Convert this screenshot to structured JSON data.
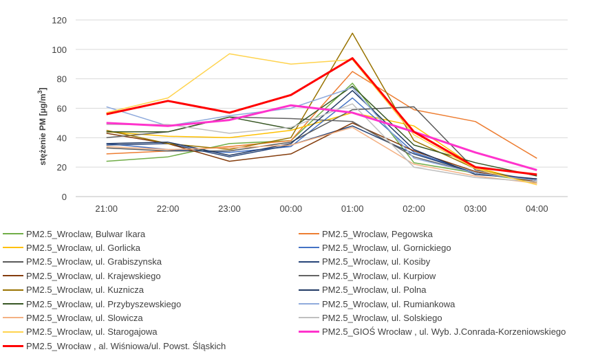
{
  "chart_data": {
    "type": "line",
    "ylabel": "stężenie PM [µg/m³]",
    "ylabel_parts": [
      "stężenie PM [µg/m",
      "3",
      "]"
    ],
    "ylim": [
      0,
      120
    ],
    "yticks": [
      0,
      20,
      40,
      60,
      80,
      100,
      120
    ],
    "categories": [
      "21:00",
      "22:00",
      "23:00",
      "00:00",
      "01:00",
      "02:00",
      "03:00",
      "04:00"
    ],
    "grid": "horizontal",
    "legend_position": "bottom",
    "series": [
      {
        "name": "PM2.5_Wroclaw, Bulwar Ikara",
        "color": "#70ad47",
        "width": 1.5,
        "values": [
          24,
          27,
          36,
          38,
          77,
          23,
          16,
          10
        ]
      },
      {
        "name": "PM2.5_Wroclaw, Pegowska",
        "color": "#ed7d31",
        "width": 1.5,
        "values": [
          29,
          31,
          34,
          38,
          85,
          59,
          51,
          26
        ]
      },
      {
        "name": "PM2.5_Wroclaw, ul. Gorlicka",
        "color": "#ffc000",
        "width": 1.5,
        "values": [
          44,
          41,
          40,
          45,
          57,
          48,
          20,
          9
        ]
      },
      {
        "name": "PM2.5_Wroclaw, ul. Gornickiego",
        "color": "#4472c4",
        "width": 1.5,
        "values": [
          36,
          32,
          30,
          34,
          67,
          30,
          16,
          11
        ]
      },
      {
        "name": "PM2.5_Wroclaw, ul. Grabiszynska",
        "color": "#595959",
        "width": 1.5,
        "values": [
          33,
          31,
          31,
          37,
          59,
          61,
          18,
          11
        ]
      },
      {
        "name": "PM2.5_Wroclaw, ul. Kosiby",
        "color": "#264478",
        "width": 1.5,
        "values": [
          35,
          36,
          27,
          35,
          48,
          29,
          16,
          12
        ]
      },
      {
        "name": "PM2.5_Wroclaw, ul. Krajewskiego",
        "color": "#843c0c",
        "width": 1.5,
        "values": [
          43,
          36,
          24,
          29,
          50,
          31,
          17,
          10
        ]
      },
      {
        "name": "PM2.5_Wroclaw, ul. Kurpiow",
        "color": "#636363",
        "width": 1.5,
        "values": [
          40,
          44,
          54,
          53,
          51,
          27,
          16,
          11
        ]
      },
      {
        "name": "PM2.5_Wroclaw, ul. Kuznicza",
        "color": "#997300",
        "width": 1.5,
        "values": [
          45,
          36,
          32,
          40,
          111,
          38,
          19,
          9
        ]
      },
      {
        "name": "PM2.5_Wroclaw, ul. Polna",
        "color": "#203864",
        "width": 1.5,
        "values": [
          36,
          37,
          28,
          36,
          72,
          32,
          15,
          12
        ]
      },
      {
        "name": "PM2.5_Wroclaw, ul. Przybyszewskiego",
        "color": "#375623",
        "width": 1.5,
        "values": [
          44,
          44,
          54,
          46,
          75,
          35,
          23,
          14
        ]
      },
      {
        "name": "PM2.5_Wroclaw, ul. Rumiankowa",
        "color": "#8faadc",
        "width": 1.5,
        "values": [
          61,
          48,
          55,
          60,
          74,
          26,
          16,
          11
        ]
      },
      {
        "name": "PM2.5_Wroclaw, ul. Slowicza",
        "color": "#f4b183",
        "width": 1.5,
        "values": [
          34,
          32,
          33,
          35,
          47,
          22,
          14,
          9
        ]
      },
      {
        "name": "PM2.5_Wroclaw, ul. Solskiego",
        "color": "#bfbfbf",
        "width": 1.5,
        "values": [
          49,
          49,
          43,
          47,
          63,
          20,
          13,
          10
        ]
      },
      {
        "name": "PM2.5_Wroclaw, ul. Starogajowa",
        "color": "#ffd34d",
        "width": 1.5,
        "values": [
          57,
          67,
          97,
          90,
          93,
          42,
          19,
          8
        ]
      },
      {
        "name": "PM2.5_GIOŚ Wrocław , ul. Wyb. J.Conrada-Korzeniowskiego",
        "color": "#ff33cc",
        "width": 3,
        "values": [
          50,
          48,
          52,
          62,
          57,
          44,
          30,
          18
        ]
      },
      {
        "name": "PM2.5_Wrocław , al. Wiśniowa/ul. Powst. Śląskich",
        "color": "#ff0000",
        "width": 3,
        "values": [
          56,
          65,
          57,
          69,
          94,
          44,
          20,
          15
        ]
      }
    ]
  }
}
